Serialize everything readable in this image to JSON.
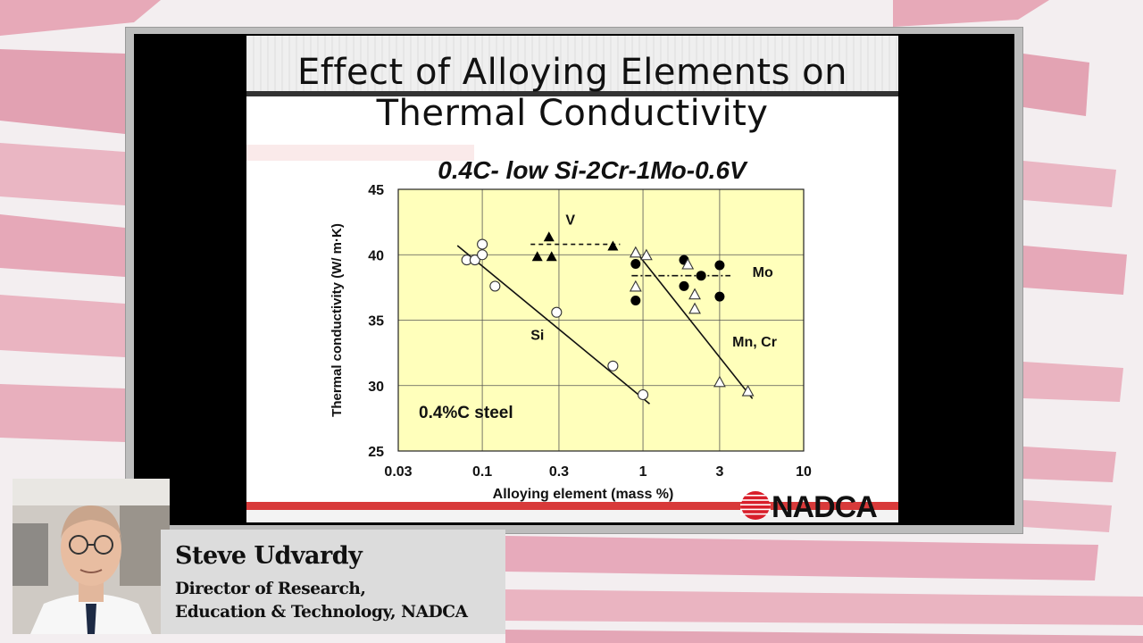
{
  "slide": {
    "title_line1": "Effect of Alloying Elements on",
    "title_line2": "Thermal Conductivity",
    "brand": "NADCA",
    "colors": {
      "plot_bg": "#ffffbb",
      "brand_red": "#d81e2a",
      "footer_bar": "#d83a3a"
    }
  },
  "presenter": {
    "name": "Steve Udvardy",
    "title_line1": "Director of Research,",
    "title_line2": "Education & Technology, NADCA"
  },
  "chart_data": {
    "type": "scatter",
    "title": "0.4C- low Si-2Cr-1Mo-0.6V",
    "xlabel": "Alloying element (mass %)",
    "ylabel": "Thermal conductivity (W/ m·K)",
    "xscale": "log",
    "xlim": [
      0.03,
      10
    ],
    "ylim": [
      25,
      45
    ],
    "xticks": [
      {
        "value": 0.03,
        "label": "0.03"
      },
      {
        "value": 0.1,
        "label": "0.1"
      },
      {
        "value": 0.3,
        "label": "0.3"
      },
      {
        "value": 1,
        "label": "1"
      },
      {
        "value": 3,
        "label": "3"
      },
      {
        "value": 10,
        "label": "10"
      }
    ],
    "yticks": [
      {
        "value": 25,
        "label": "25"
      },
      {
        "value": 30,
        "label": "30"
      },
      {
        "value": 35,
        "label": "35"
      },
      {
        "value": 40,
        "label": "40"
      },
      {
        "value": 45,
        "label": "45"
      }
    ],
    "grid": true,
    "annotation": "0.4%C steel",
    "series": [
      {
        "name": "Si",
        "marker": "open-circle",
        "points": [
          [
            0.08,
            39.6
          ],
          [
            0.09,
            39.6
          ],
          [
            0.1,
            40.8
          ],
          [
            0.1,
            40.0
          ],
          [
            0.12,
            37.6
          ],
          [
            0.29,
            35.6
          ],
          [
            0.65,
            31.5
          ],
          [
            1.0,
            29.3
          ]
        ],
        "trend": {
          "style": "solid",
          "from": [
            0.07,
            40.7
          ],
          "to": [
            1.1,
            28.6
          ]
        }
      },
      {
        "name": "V",
        "marker": "filled-triangle",
        "points": [
          [
            0.22,
            39.9
          ],
          [
            0.26,
            41.4
          ],
          [
            0.27,
            39.9
          ],
          [
            0.65,
            40.7
          ]
        ],
        "trend": {
          "style": "dashed",
          "from": [
            0.2,
            40.8
          ],
          "to": [
            0.72,
            40.8
          ]
        }
      },
      {
        "name": "Mo",
        "marker": "filled-circle",
        "points": [
          [
            0.9,
            39.3
          ],
          [
            0.9,
            36.5
          ],
          [
            1.8,
            39.6
          ],
          [
            1.8,
            37.6
          ],
          [
            2.3,
            38.4
          ],
          [
            3.0,
            39.2
          ],
          [
            3.0,
            36.8
          ]
        ],
        "trend": {
          "style": "dash-dot",
          "from": [
            0.85,
            38.4
          ],
          "to": [
            3.5,
            38.4
          ]
        }
      },
      {
        "name": "Mn, Cr",
        "marker": "open-triangle",
        "points": [
          [
            0.9,
            40.2
          ],
          [
            0.9,
            37.6
          ],
          [
            1.05,
            40.0
          ],
          [
            1.9,
            39.3
          ],
          [
            2.1,
            37.0
          ],
          [
            2.1,
            35.9
          ],
          [
            3.0,
            30.3
          ],
          [
            4.5,
            29.6
          ]
        ],
        "trend": {
          "style": "solid",
          "from": [
            0.95,
            39.9
          ],
          "to": [
            4.8,
            29.0
          ]
        }
      }
    ],
    "series_labels": [
      {
        "text": "V",
        "x": 0.33,
        "y": 42.3
      },
      {
        "text": "Mo",
        "x": 4.8,
        "y": 38.3
      },
      {
        "text": "Si",
        "x": 0.2,
        "y": 33.5
      },
      {
        "text": "Mn, Cr",
        "x": 3.6,
        "y": 33.0
      }
    ]
  }
}
